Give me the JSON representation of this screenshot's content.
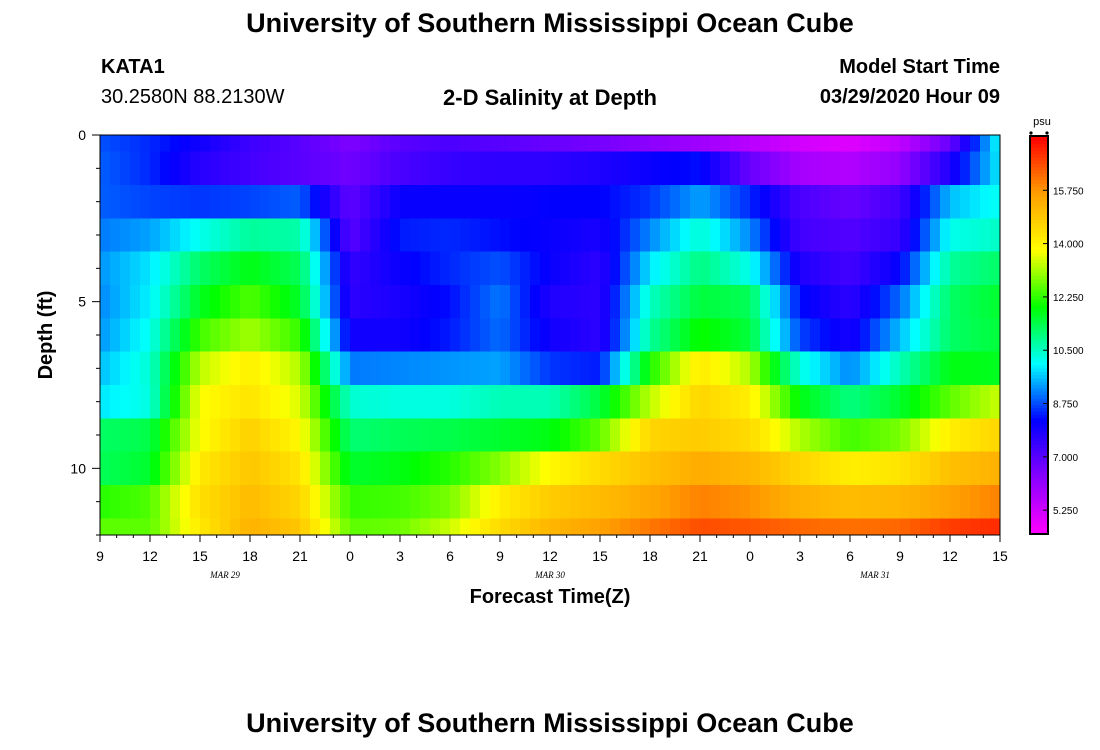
{
  "page": {
    "title": "University of Southern Mississippi Ocean Cube",
    "footer_title": "University of Southern Mississippi Ocean Cube"
  },
  "header": {
    "station_id": "KATA1",
    "coordinates": "30.2580N 88.2130W",
    "chart_title": "2-D Salinity at Depth",
    "model_label": "Model Start Time",
    "model_time": "03/29/2020 Hour 09"
  },
  "chart_data": {
    "type": "heatmap",
    "title": "2-D Salinity at Depth",
    "xlabel": "Forecast Time(Z)",
    "ylabel": "Depth (ft)",
    "x_hours": [
      0,
      54
    ],
    "y_range_ft": [
      0,
      12
    ],
    "x_ticks": [
      "9",
      "12",
      "15",
      "18",
      "21",
      "0",
      "3",
      "6",
      "9",
      "12",
      "15",
      "18",
      "21",
      "0",
      "3",
      "6",
      "9",
      "12",
      "15"
    ],
    "date_labels": [
      {
        "label": "MAR 29",
        "hour": 7.5
      },
      {
        "label": "MAR 30",
        "hour": 27
      },
      {
        "label": "MAR 31",
        "hour": 46.5
      }
    ],
    "y_ticks": [
      {
        "label": "0",
        "value": 0
      },
      {
        "label": "5",
        "value": 5
      },
      {
        "label": "10",
        "value": 10
      }
    ],
    "depth_levels_ft": [
      0,
      1,
      2,
      3,
      4,
      5,
      6,
      7,
      8,
      9,
      10,
      11,
      12
    ],
    "colorbar": {
      "unit": "psu",
      "min": 4.5,
      "max": 17.5,
      "tick_labels": [
        "5.250",
        "7.000",
        "8.750",
        "10.500",
        "12.250",
        "14.000",
        "15.750"
      ],
      "tick_values": [
        5.25,
        7.0,
        8.75,
        10.5,
        12.25,
        14.0,
        15.75
      ],
      "colors": [
        "#ff00ff",
        "#8800ff",
        "#0000ff",
        "#00ffff",
        "#00ff00",
        "#ffff00",
        "#ffa000",
        "#ff0000"
      ]
    },
    "salinity_anchors": {
      "hours": [
        0,
        3,
        6,
        9,
        12,
        15,
        18,
        21,
        24,
        27,
        30,
        33,
        36,
        39,
        42,
        45,
        48,
        51,
        54
      ],
      "rows": [
        [
          8.8,
          8.5,
          8.0,
          7.4,
          7.0,
          6.5,
          7.0,
          7.2,
          7.0,
          6.8,
          6.6,
          6.3,
          6.0,
          5.6,
          5.2,
          5.0,
          5.5,
          6.8,
          10.2
        ],
        [
          8.9,
          8.5,
          7.7,
          7.3,
          7.0,
          6.7,
          7.2,
          7.5,
          7.6,
          7.6,
          7.8,
          8.1,
          8.3,
          6.8,
          5.9,
          5.7,
          6.2,
          7.8,
          10.0
        ],
        [
          8.9,
          8.7,
          8.6,
          8.7,
          8.9,
          6.9,
          8.1,
          8.1,
          8.1,
          8.2,
          8.2,
          8.6,
          9.4,
          8.5,
          7.2,
          6.8,
          7.3,
          9.6,
          10.2
        ],
        [
          9.1,
          9.4,
          10.2,
          10.8,
          10.7,
          7.0,
          8.4,
          8.5,
          8.3,
          8.1,
          7.9,
          9.2,
          10.4,
          9.2,
          7.3,
          7.1,
          7.5,
          10.2,
          10.5
        ],
        [
          9.3,
          9.9,
          11.2,
          11.8,
          11.3,
          7.5,
          8.1,
          8.5,
          8.8,
          8.1,
          7.6,
          9.9,
          11.0,
          10.2,
          7.8,
          7.3,
          8.2,
          10.8,
          11.2
        ],
        [
          9.2,
          10.0,
          11.7,
          12.5,
          11.6,
          7.6,
          7.9,
          8.3,
          9.1,
          7.8,
          7.6,
          10.5,
          11.5,
          11.3,
          8.3,
          7.6,
          9.0,
          11.2,
          11.6
        ],
        [
          9.3,
          10.2,
          12.4,
          13.1,
          12.3,
          8.0,
          8.0,
          8.4,
          9.0,
          8.0,
          7.6,
          10.8,
          12.0,
          11.5,
          8.7,
          7.9,
          9.6,
          11.2,
          11.5
        ],
        [
          9.6,
          10.4,
          13.3,
          14.1,
          13.2,
          9.1,
          9.2,
          9.3,
          9.4,
          8.6,
          8.4,
          12.1,
          14.2,
          13.2,
          10.3,
          9.2,
          10.6,
          11.8,
          11.7
        ],
        [
          9.9,
          10.3,
          13.8,
          14.3,
          13.5,
          10.4,
          10.3,
          10.3,
          10.6,
          10.6,
          11.5,
          13.3,
          14.6,
          14.1,
          11.8,
          11.0,
          11.6,
          12.6,
          13.4
        ],
        [
          11.2,
          11.4,
          13.8,
          14.7,
          13.9,
          11.1,
          11.3,
          11.4,
          11.6,
          11.8,
          12.6,
          14.6,
          14.8,
          14.5,
          13.2,
          12.4,
          12.8,
          14.1,
          14.6
        ],
        [
          11.3,
          11.6,
          14.2,
          14.9,
          14.3,
          11.6,
          11.8,
          12.2,
          12.9,
          13.9,
          14.5,
          15.0,
          15.4,
          15.2,
          14.6,
          14.1,
          14.3,
          15.0,
          15.3
        ],
        [
          12.2,
          12.5,
          14.4,
          15.1,
          14.6,
          12.3,
          12.4,
          12.8,
          14.1,
          14.8,
          15.1,
          15.5,
          16.0,
          15.8,
          15.3,
          15.1,
          15.2,
          15.6,
          16.0
        ],
        [
          12.6,
          12.6,
          14.2,
          15.3,
          14.9,
          12.6,
          12.7,
          13.4,
          14.5,
          15.2,
          15.6,
          16.1,
          16.6,
          16.5,
          16.3,
          16.2,
          16.3,
          16.8,
          17.0
        ]
      ]
    }
  }
}
